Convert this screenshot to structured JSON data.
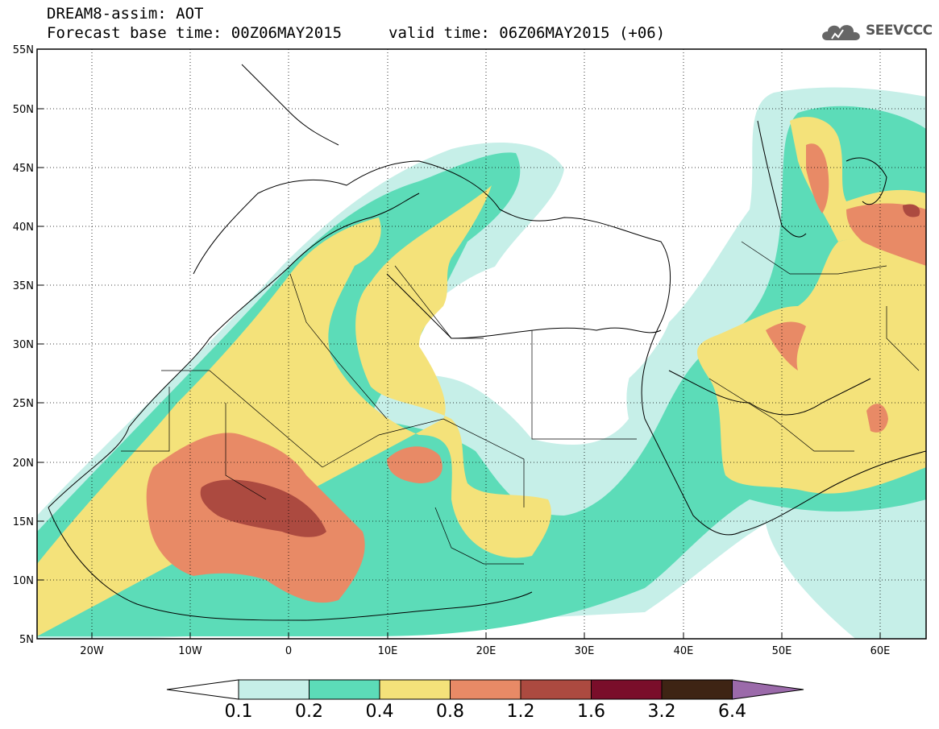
{
  "header": {
    "title": "DREAM8-assim: AOT",
    "base_time": "Forecast base time: 00Z06MAY2015",
    "valid_time": "valid time: 06Z06MAY2015 (+06)",
    "logo_text": "SEEVCCC"
  },
  "map": {
    "lon_labels": [
      "20W",
      "10W",
      "0",
      "10E",
      "20E",
      "30E",
      "40E",
      "50E",
      "60E"
    ],
    "lat_labels": [
      "55N",
      "50N",
      "45N",
      "40N",
      "35N",
      "30N",
      "25N",
      "20N",
      "15N",
      "10N",
      "5N"
    ],
    "extent": {
      "lon": [
        -25,
        65
      ],
      "lat": [
        5,
        55
      ]
    }
  },
  "colorbar": {
    "levels": [
      "0.1",
      "0.2",
      "0.4",
      "0.8",
      "1.2",
      "1.6",
      "3.2",
      "6.4"
    ],
    "colors": [
      "#c6efe8",
      "#5cdcb8",
      "#f4e27a",
      "#e88a66",
      "#ac4a40",
      "#7a0e2a",
      "#3e2414",
      "#9b6aaa"
    ],
    "under_color": "#ffffff"
  }
}
